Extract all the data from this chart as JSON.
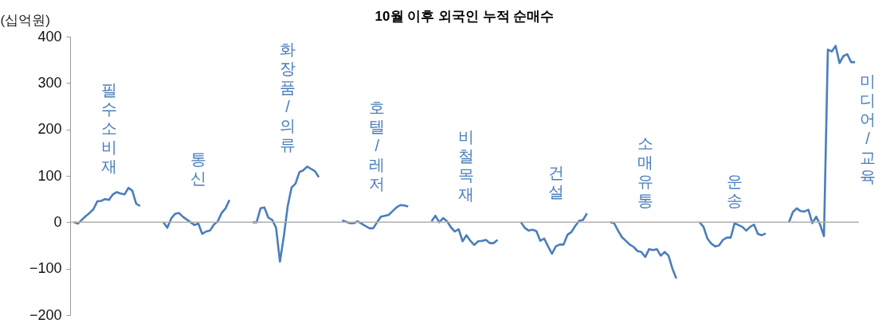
{
  "chart_data": {
    "type": "line",
    "title": "10월 이후 외국인 누적 순매수",
    "ylabel": "(십억원)",
    "categories": [
      null,
      null,
      null,
      null,
      null,
      null,
      null,
      null,
      null,
      null,
      null,
      null,
      null,
      null,
      null,
      null,
      null,
      null,
      null,
      null,
      null,
      null,
      null,
      null,
      null,
      null,
      null,
      null,
      null,
      null,
      null,
      null,
      null,
      null,
      null,
      null,
      null,
      null,
      null,
      null,
      null,
      null,
      null,
      null,
      null,
      null,
      null,
      null,
      null,
      null,
      null,
      null,
      null,
      null,
      null,
      null,
      null,
      null,
      null,
      null,
      null,
      null,
      null,
      null,
      null,
      null,
      null,
      null,
      null,
      null,
      null,
      null,
      null,
      null,
      null,
      null,
      null,
      null,
      null,
      null,
      null,
      null,
      null,
      null,
      null,
      null,
      null,
      null,
      null,
      null,
      null,
      null,
      null,
      null,
      null,
      null,
      null,
      null,
      null,
      null,
      null,
      null,
      null,
      null,
      null,
      null,
      null,
      null,
      null,
      null,
      null,
      null,
      null,
      null,
      null,
      null,
      null,
      null,
      null,
      null,
      null,
      null,
      null,
      null,
      null,
      null,
      null,
      null,
      null,
      null,
      null,
      null,
      null,
      null,
      null,
      null,
      null,
      null,
      null,
      null,
      null,
      null,
      null,
      null,
      null,
      null,
      null,
      null,
      null,
      null,
      null,
      null,
      null,
      null,
      null,
      null,
      null,
      null,
      null,
      null,
      null,
      null,
      null,
      null,
      null,
      null,
      null,
      null,
      null,
      null,
      null,
      null,
      null,
      null,
      null,
      null,
      null,
      null,
      null,
      null,
      null,
      null,
      null,
      null,
      null,
      null,
      null,
      null,
      null,
      null,
      null,
      null,
      null,
      null,
      null,
      null,
      null,
      null,
      null,
      null,
      null,
      null
    ],
    "series": [
      {
        "color": "#4a7ebb",
        "values": [
          0,
          -3,
          5,
          13,
          20,
          28,
          45,
          46,
          50,
          48,
          60,
          65,
          62,
          60,
          74,
          68,
          40,
          35,
          null,
          null,
          null,
          null,
          null,
          0,
          -12,
          8,
          18,
          20,
          12,
          6,
          0,
          -6,
          -3,
          -25,
          -20,
          -18,
          -5,
          2,
          20,
          30,
          48,
          null,
          null,
          null,
          null,
          null,
          0,
          0,
          30,
          32,
          10,
          5,
          -12,
          -85,
          -30,
          35,
          75,
          83,
          108,
          112,
          120,
          115,
          110,
          97,
          null,
          null,
          null,
          null,
          null,
          4,
          1,
          -2,
          -2,
          2,
          -3,
          -8,
          -13,
          -13,
          0,
          12,
          14,
          16,
          24,
          32,
          37,
          36,
          34,
          null,
          null,
          null,
          null,
          null,
          2,
          14,
          0,
          9,
          2,
          -11,
          -20,
          -15,
          -41,
          -28,
          -40,
          -49,
          -41,
          -40,
          -38,
          -45,
          -45,
          -38,
          null,
          null,
          null,
          null,
          null,
          0,
          -12,
          -18,
          -16,
          -19,
          -40,
          -35,
          -52,
          -68,
          -52,
          -48,
          -48,
          -27,
          -21,
          -8,
          3,
          5,
          19,
          null,
          null,
          null,
          null,
          null,
          0,
          -2,
          -18,
          -32,
          -40,
          -48,
          -53,
          -62,
          -64,
          -75,
          -58,
          -60,
          -58,
          -72,
          -64,
          -72,
          -100,
          -121,
          null,
          null,
          null,
          null,
          null,
          0,
          -10,
          -35,
          -46,
          -52,
          -50,
          -38,
          -33,
          -33,
          -2,
          -6,
          -10,
          -18,
          -10,
          -5,
          -25,
          -28,
          -24,
          null,
          null,
          null,
          null,
          null,
          0,
          22,
          30,
          24,
          23,
          27,
          -2,
          12,
          -5,
          -30,
          372,
          368,
          380,
          343,
          358,
          362,
          345,
          345
        ]
      }
    ],
    "annotations": [
      "필수소비재",
      "통신",
      "화장품/의류",
      "호텔/레저",
      "비철목재",
      "건설",
      "소매유통",
      "운송",
      "미디어/교육"
    ],
    "ylim": [
      -200,
      400
    ],
    "yticks": [
      -200,
      -100,
      0,
      100,
      200,
      300,
      400
    ],
    "ref_lines": [
      {
        "axis": "y",
        "value": 0,
        "color": "#b0b0b0"
      }
    ],
    "grid": false,
    "marker": "none",
    "line_style": "solid"
  }
}
